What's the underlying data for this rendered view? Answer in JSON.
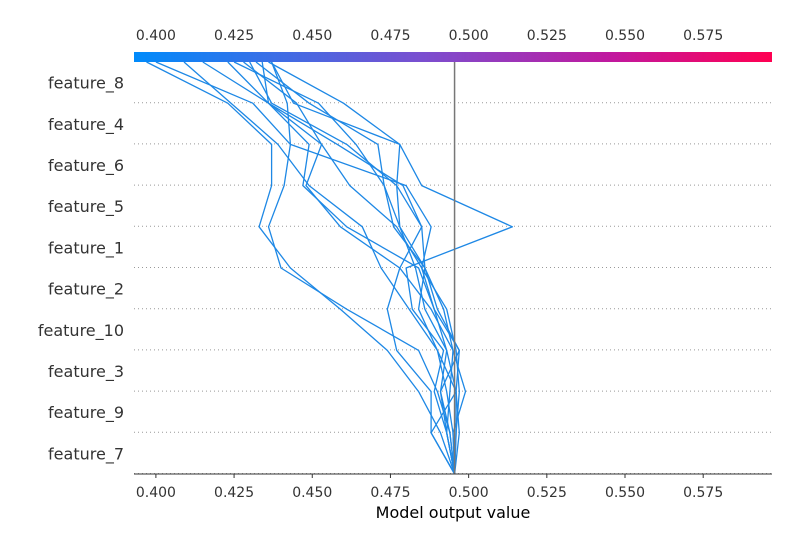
{
  "chart_data": {
    "type": "line",
    "title": "",
    "xlabel": "Model output value",
    "ylabel": "",
    "xlim": [
      0.393,
      0.597
    ],
    "xticks": [
      "0.400",
      "0.425",
      "0.450",
      "0.475",
      "0.500",
      "0.525",
      "0.550",
      "0.575"
    ],
    "xtick_values": [
      0.4,
      0.425,
      0.45,
      0.475,
      0.5,
      0.525,
      0.55,
      0.575
    ],
    "base_value": 0.4955,
    "grid": "dotted horizontal lines between features",
    "colorbar": {
      "position": "top",
      "colors": [
        "#008bfb",
        "#7a4fd0",
        "#c1189e",
        "#ff0052"
      ]
    },
    "line_color": "#1e88e5",
    "features": [
      "feature_8",
      "feature_4",
      "feature_6",
      "feature_5",
      "feature_1",
      "feature_2",
      "feature_10",
      "feature_3",
      "feature_9",
      "feature_7"
    ],
    "series": [
      {
        "values": [
          0.397,
          0.423,
          0.437,
          0.437,
          0.433,
          0.443,
          0.459,
          0.474,
          0.484,
          0.491,
          0.4955
        ]
      },
      {
        "values": [
          0.4,
          0.431,
          0.443,
          0.441,
          0.436,
          0.44,
          0.461,
          0.484,
          0.49,
          0.494,
          0.4955
        ]
      },
      {
        "values": [
          0.409,
          0.424,
          0.439,
          0.449,
          0.466,
          0.472,
          0.481,
          0.49,
          0.496,
          0.497,
          0.4955
        ]
      },
      {
        "values": [
          0.415,
          0.436,
          0.453,
          0.448,
          0.459,
          0.478,
          0.488,
          0.495,
          0.499,
          0.495,
          0.4955
        ]
      },
      {
        "values": [
          0.423,
          0.436,
          0.449,
          0.447,
          0.461,
          0.484,
          0.489,
          0.493,
          0.496,
          0.496,
          0.4955
        ]
      },
      {
        "values": [
          0.425,
          0.452,
          0.464,
          0.473,
          0.476,
          0.486,
          0.492,
          0.495,
          0.494,
          0.493,
          0.4955
        ]
      },
      {
        "values": [
          0.428,
          0.445,
          0.453,
          0.462,
          0.477,
          0.485,
          0.493,
          0.496,
          0.497,
          0.496,
          0.4955
        ]
      },
      {
        "values": [
          0.432,
          0.449,
          0.471,
          0.473,
          0.478,
          0.483,
          0.486,
          0.493,
          0.491,
          0.494,
          0.4955
        ]
      },
      {
        "values": [
          0.436,
          0.46,
          0.478,
          0.477,
          0.485,
          0.486,
          0.49,
          0.497,
          0.496,
          0.488,
          0.4955
        ]
      },
      {
        "values": [
          0.437,
          0.444,
          0.478,
          0.485,
          0.514,
          0.48,
          0.482,
          0.492,
          0.489,
          0.493,
          0.4955
        ]
      },
      {
        "values": [
          0.437,
          0.442,
          0.443,
          0.48,
          0.488,
          0.485,
          0.489,
          0.497,
          0.491,
          0.493,
          0.4955
        ]
      },
      {
        "values": [
          0.434,
          0.436,
          0.458,
          0.479,
          0.485,
          0.478,
          0.474,
          0.477,
          0.488,
          0.488,
          0.4955
        ]
      },
      {
        "values": [
          0.43,
          0.437,
          0.461,
          0.477,
          0.478,
          0.486,
          0.484,
          0.49,
          0.493,
          0.495,
          0.4955
        ]
      }
    ]
  }
}
